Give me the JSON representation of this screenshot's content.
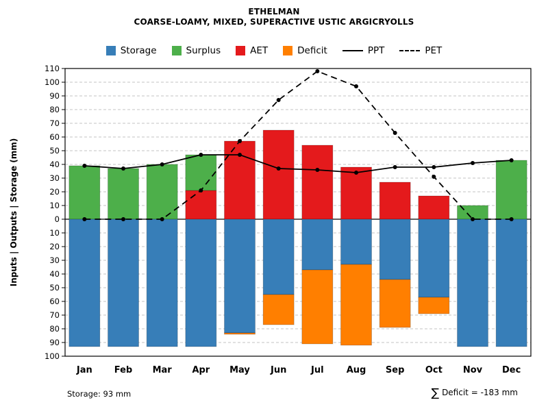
{
  "title": {
    "line1": "ETHELMAN",
    "line2": "COARSE-LOAMY, MIXED, SUPERACTIVE USTIC ARGICRYOLLS"
  },
  "legend": [
    {
      "label": "Storage",
      "color": "#377EB8",
      "marker": "box"
    },
    {
      "label": "Surplus",
      "color": "#4DAF4A",
      "marker": "box"
    },
    {
      "label": "AET",
      "color": "#E41A1C",
      "marker": "box"
    },
    {
      "label": "Deficit",
      "color": "#FF7F00",
      "marker": "box"
    },
    {
      "label": "PPT",
      "color": "#000000",
      "marker": "solid-line"
    },
    {
      "label": "PET",
      "color": "#000000",
      "marker": "dashed-line"
    }
  ],
  "footer": {
    "left": "Storage: 93 mm",
    "sigma": "∑",
    "right": "Deficit = -183 mm"
  },
  "chart_data": {
    "type": "bar",
    "title": "ETHELMAN",
    "subtitle": "COARSE-LOAMY, MIXED, SUPERACTIVE USTIC ARGICRYOLLS",
    "ylabel": "Inputs | Outputs | Storage  (mm)",
    "categories": [
      "Jan",
      "Feb",
      "Mar",
      "Apr",
      "May",
      "Jun",
      "Jul",
      "Aug",
      "Sep",
      "Oct",
      "Nov",
      "Dec"
    ],
    "series": [
      {
        "name": "AET",
        "direction": "up",
        "color": "#E41A1C",
        "values": [
          0,
          0,
          0,
          21,
          57,
          65,
          54,
          38,
          27,
          17,
          0,
          0
        ]
      },
      {
        "name": "Surplus",
        "direction": "up",
        "stacked_on": "AET",
        "color": "#4DAF4A",
        "values": [
          39,
          37,
          40,
          26,
          0,
          0,
          0,
          0,
          0,
          0,
          10,
          43
        ]
      },
      {
        "name": "Storage",
        "direction": "down",
        "color": "#377EB8",
        "values": [
          93,
          93,
          93,
          93,
          83,
          55,
          37,
          33,
          44,
          57,
          93,
          93
        ]
      },
      {
        "name": "Deficit",
        "direction": "down",
        "stacked_on": "Storage",
        "color": "#FF7F00",
        "values": [
          0,
          0,
          0,
          0,
          1,
          22,
          54,
          59,
          35,
          12,
          0,
          0
        ]
      }
    ],
    "lines": [
      {
        "name": "PPT",
        "style": "solid",
        "values": [
          39,
          37,
          40,
          47,
          47,
          37,
          36,
          34,
          38,
          38,
          41,
          43
        ]
      },
      {
        "name": "PET",
        "style": "dashed",
        "values": [
          0,
          0,
          0,
          21,
          57,
          87,
          108,
          97,
          63,
          31,
          0,
          0
        ]
      }
    ],
    "y_axis": {
      "upper_max": 110,
      "lower_max": 100,
      "tick_step": 10,
      "zero_label": "0"
    },
    "grid": "dashed-horizontal",
    "legend_position": "top-center",
    "annotations": {
      "storage_total": "Storage: 93 mm",
      "deficit_total": "∑ Deficit = -183 mm"
    }
  }
}
